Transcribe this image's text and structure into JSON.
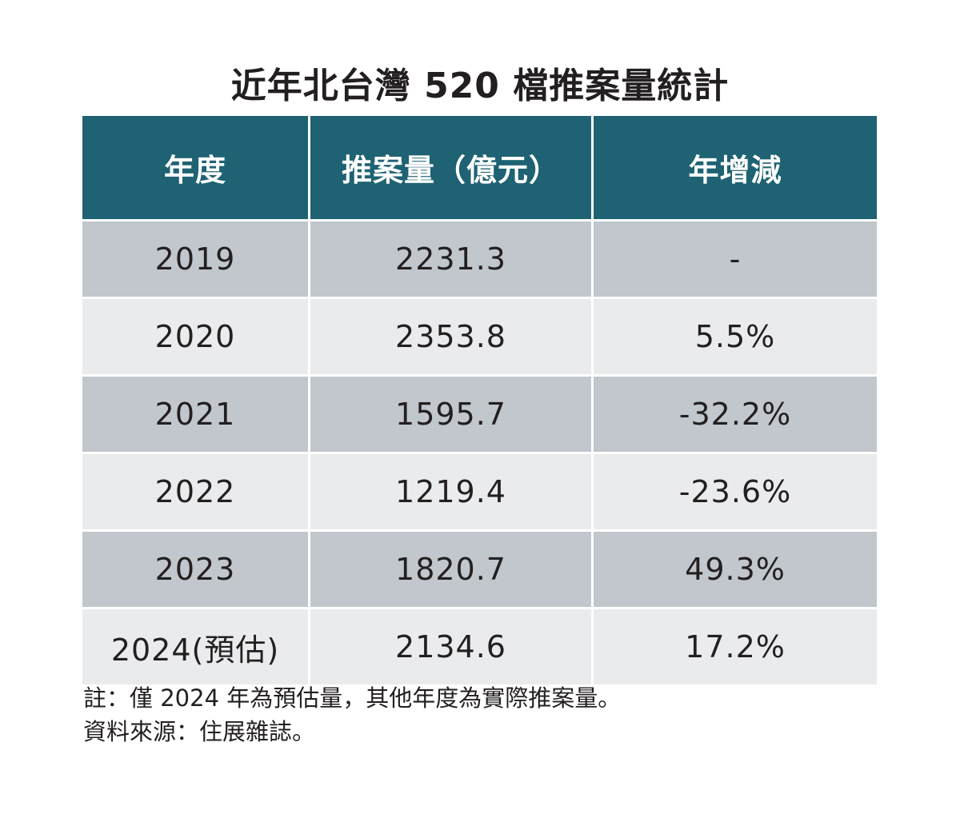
{
  "title": "近年北台灣 520 檔推案量統計",
  "chart_data": {
    "type": "table",
    "title": "近年北台灣 520 檔推案量統計",
    "columns": [
      "年度",
      "推案量（億元）",
      "年增減"
    ],
    "rows": [
      [
        "2019",
        "2231.3",
        "-"
      ],
      [
        "2020",
        "2353.8",
        "5.5%"
      ],
      [
        "2021",
        "1595.7",
        "-32.2%"
      ],
      [
        "2022",
        "1219.4",
        "-23.6%"
      ],
      [
        "2023",
        "1820.7",
        "49.3%"
      ],
      [
        "2024(預估)",
        "2134.6",
        "17.2%"
      ]
    ]
  },
  "notes": {
    "note": "註：僅 2024 年為預估量，其他年度為實際推案量。",
    "source": "資料來源：住展雜誌。"
  },
  "colors": {
    "header_bg": "#1e6273",
    "row_dark": "#c1c7cc",
    "row_light": "#e9ebed"
  }
}
